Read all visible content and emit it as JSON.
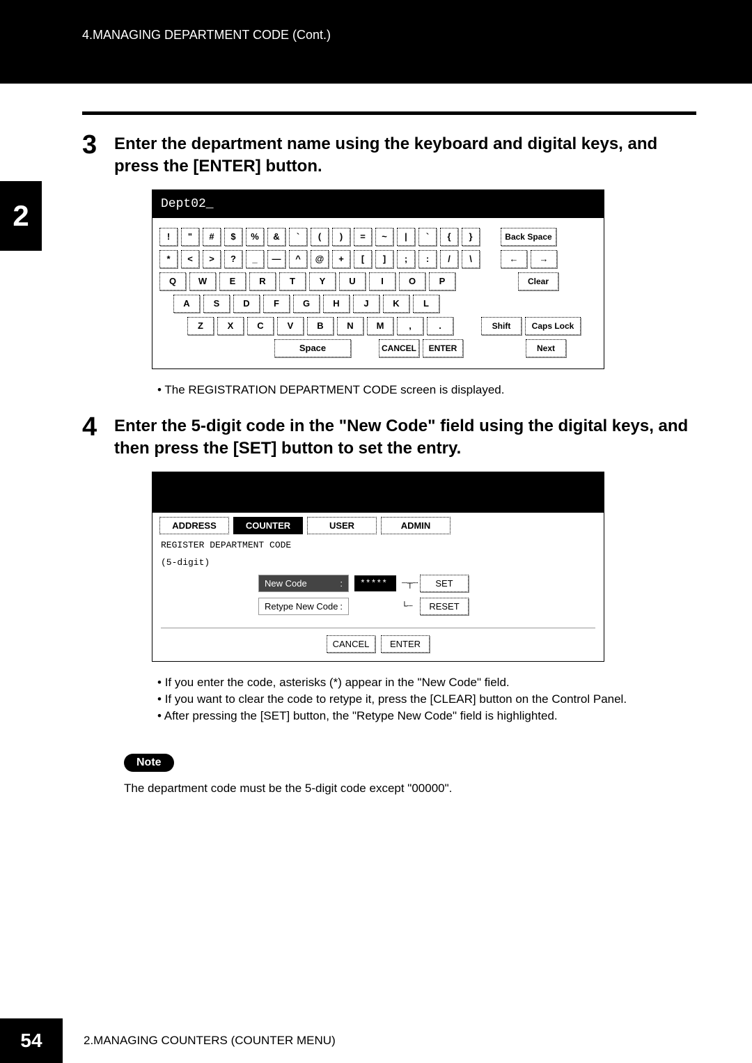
{
  "header": {
    "breadcrumb": "4.MANAGING DEPARTMENT CODE (Cont.)"
  },
  "side_tab": "2",
  "step3": {
    "num": "3",
    "text": "Enter the department name using the keyboard and digital keys, and press the [ENTER] button."
  },
  "keyboard": {
    "display": "Dept02_",
    "row1": [
      "!",
      "\"",
      "#",
      "$",
      "%",
      "&",
      "`",
      "(",
      ")",
      "=",
      "~",
      "|",
      "`",
      "{",
      "}"
    ],
    "row1_right": "Back Space",
    "row2": [
      "*",
      "<",
      ">",
      "?",
      "_",
      "—",
      "^",
      "@",
      "+",
      "[",
      "]",
      ";",
      ":",
      "/",
      "\\"
    ],
    "row2_right": [
      "←",
      "→"
    ],
    "row3": [
      "Q",
      "W",
      "E",
      "R",
      "T",
      "Y",
      "U",
      "I",
      "O",
      "P"
    ],
    "row3_right": "Clear",
    "row4": [
      "A",
      "S",
      "D",
      "F",
      "G",
      "H",
      "J",
      "K",
      "L"
    ],
    "row5": [
      "Z",
      "X",
      "C",
      "V",
      "B",
      "N",
      "M",
      ",",
      "."
    ],
    "row5_right": [
      "Shift",
      "Caps Lock"
    ],
    "row6": {
      "space": "Space",
      "cancel": "CANCEL",
      "enter": "ENTER",
      "next": "Next"
    }
  },
  "bullet3": "The REGISTRATION DEPARTMENT CODE screen is displayed.",
  "step4": {
    "num": "4",
    "text": "Enter the 5-digit code in the \"New Code\" field using the digital keys, and then press the [SET] button to set the entry."
  },
  "reg": {
    "tabs": [
      "ADDRESS",
      "COUNTER",
      "USER",
      "ADMIN"
    ],
    "active_tab": 1,
    "label1": "REGISTER DEPARTMENT CODE",
    "label2": "(5-digit)",
    "new_code_label": "New Code",
    "new_code_val": "*****",
    "retype_label": "Retype New Code",
    "set": "SET",
    "reset": "RESET",
    "cancel": "CANCEL",
    "enter": "ENTER"
  },
  "bullets4": [
    "If you enter the code, asterisks (*) appear in the \"New Code\" field.",
    "If you want to clear the code to retype it, press the [CLEAR] button on the Control Panel.",
    "After pressing the [SET] button, the \"Retype New Code\" field is highlighted."
  ],
  "note": {
    "badge": "Note",
    "text": "The department code must be the 5-digit code except \"00000\"."
  },
  "footer": {
    "page": "54",
    "text": "2.MANAGING COUNTERS (COUNTER MENU)"
  }
}
